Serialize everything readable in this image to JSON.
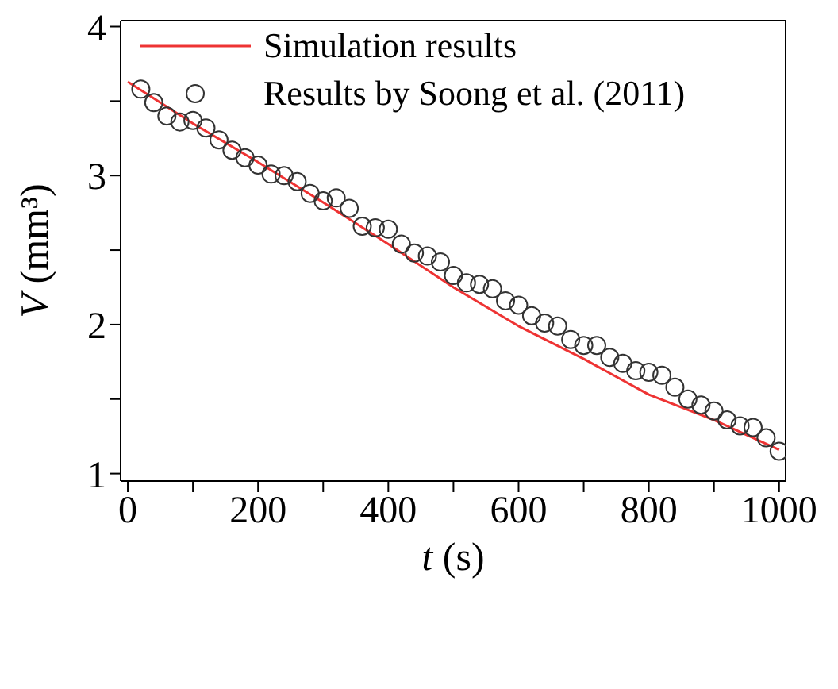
{
  "chart_data": {
    "type": "scatter",
    "xlabel": "t (s)",
    "ylabel": "V (mm³)",
    "xlim": [
      -11,
      1010
    ],
    "ylim": [
      0.95,
      4.04
    ],
    "xticks": [
      0,
      {
        "value": 100,
        "label": null
      },
      200,
      {
        "value": 300,
        "label": null
      },
      400,
      {
        "value": 500,
        "label": null
      },
      600,
      {
        "value": 700,
        "label": null
      },
      800,
      {
        "value": 900,
        "label": null
      },
      1000
    ],
    "yticks": [
      1,
      {
        "value": 1.5,
        "label": null
      },
      2,
      {
        "value": 2.5,
        "label": null
      },
      3,
      {
        "value": 3.5,
        "label": null
      },
      4
    ],
    "legend": "top left",
    "series": [
      {
        "name": "Simulation results",
        "type": "line",
        "color": "#ee3333",
        "marker": "none",
        "line_style": "solid",
        "x": [
          0,
          100,
          200,
          300,
          400,
          500,
          600,
          700,
          800,
          900,
          1000
        ],
        "values": [
          3.63,
          3.35,
          3.09,
          2.82,
          2.54,
          2.25,
          1.99,
          1.77,
          1.53,
          1.36,
          1.16
        ]
      },
      {
        "name": "Results by Soong et al. (2011)",
        "color": "#333333",
        "marker": "circle",
        "x": [
          20,
          40,
          60,
          80,
          100,
          120,
          140,
          160,
          180,
          200,
          220,
          240,
          260,
          280,
          300,
          320,
          340,
          360,
          380,
          400,
          420,
          440,
          460,
          480,
          500,
          520,
          540,
          560,
          580,
          600,
          620,
          640,
          660,
          680,
          700,
          720,
          740,
          760,
          780,
          800,
          820,
          840,
          860,
          880,
          900,
          920,
          940,
          960,
          980,
          1000
        ],
        "values": [
          3.58,
          3.49,
          3.4,
          3.36,
          3.37,
          3.32,
          3.24,
          3.17,
          3.12,
          3.07,
          3.01,
          3.0,
          2.96,
          2.88,
          2.83,
          2.85,
          2.78,
          2.66,
          2.65,
          2.64,
          2.54,
          2.48,
          2.46,
          2.42,
          2.33,
          2.28,
          2.27,
          2.24,
          2.16,
          2.13,
          2.06,
          2.01,
          1.99,
          1.9,
          1.86,
          1.86,
          1.78,
          1.74,
          1.69,
          1.68,
          1.66,
          1.58,
          1.5,
          1.46,
          1.42,
          1.36,
          1.32,
          1.31,
          1.24,
          1.15
        ]
      }
    ]
  }
}
